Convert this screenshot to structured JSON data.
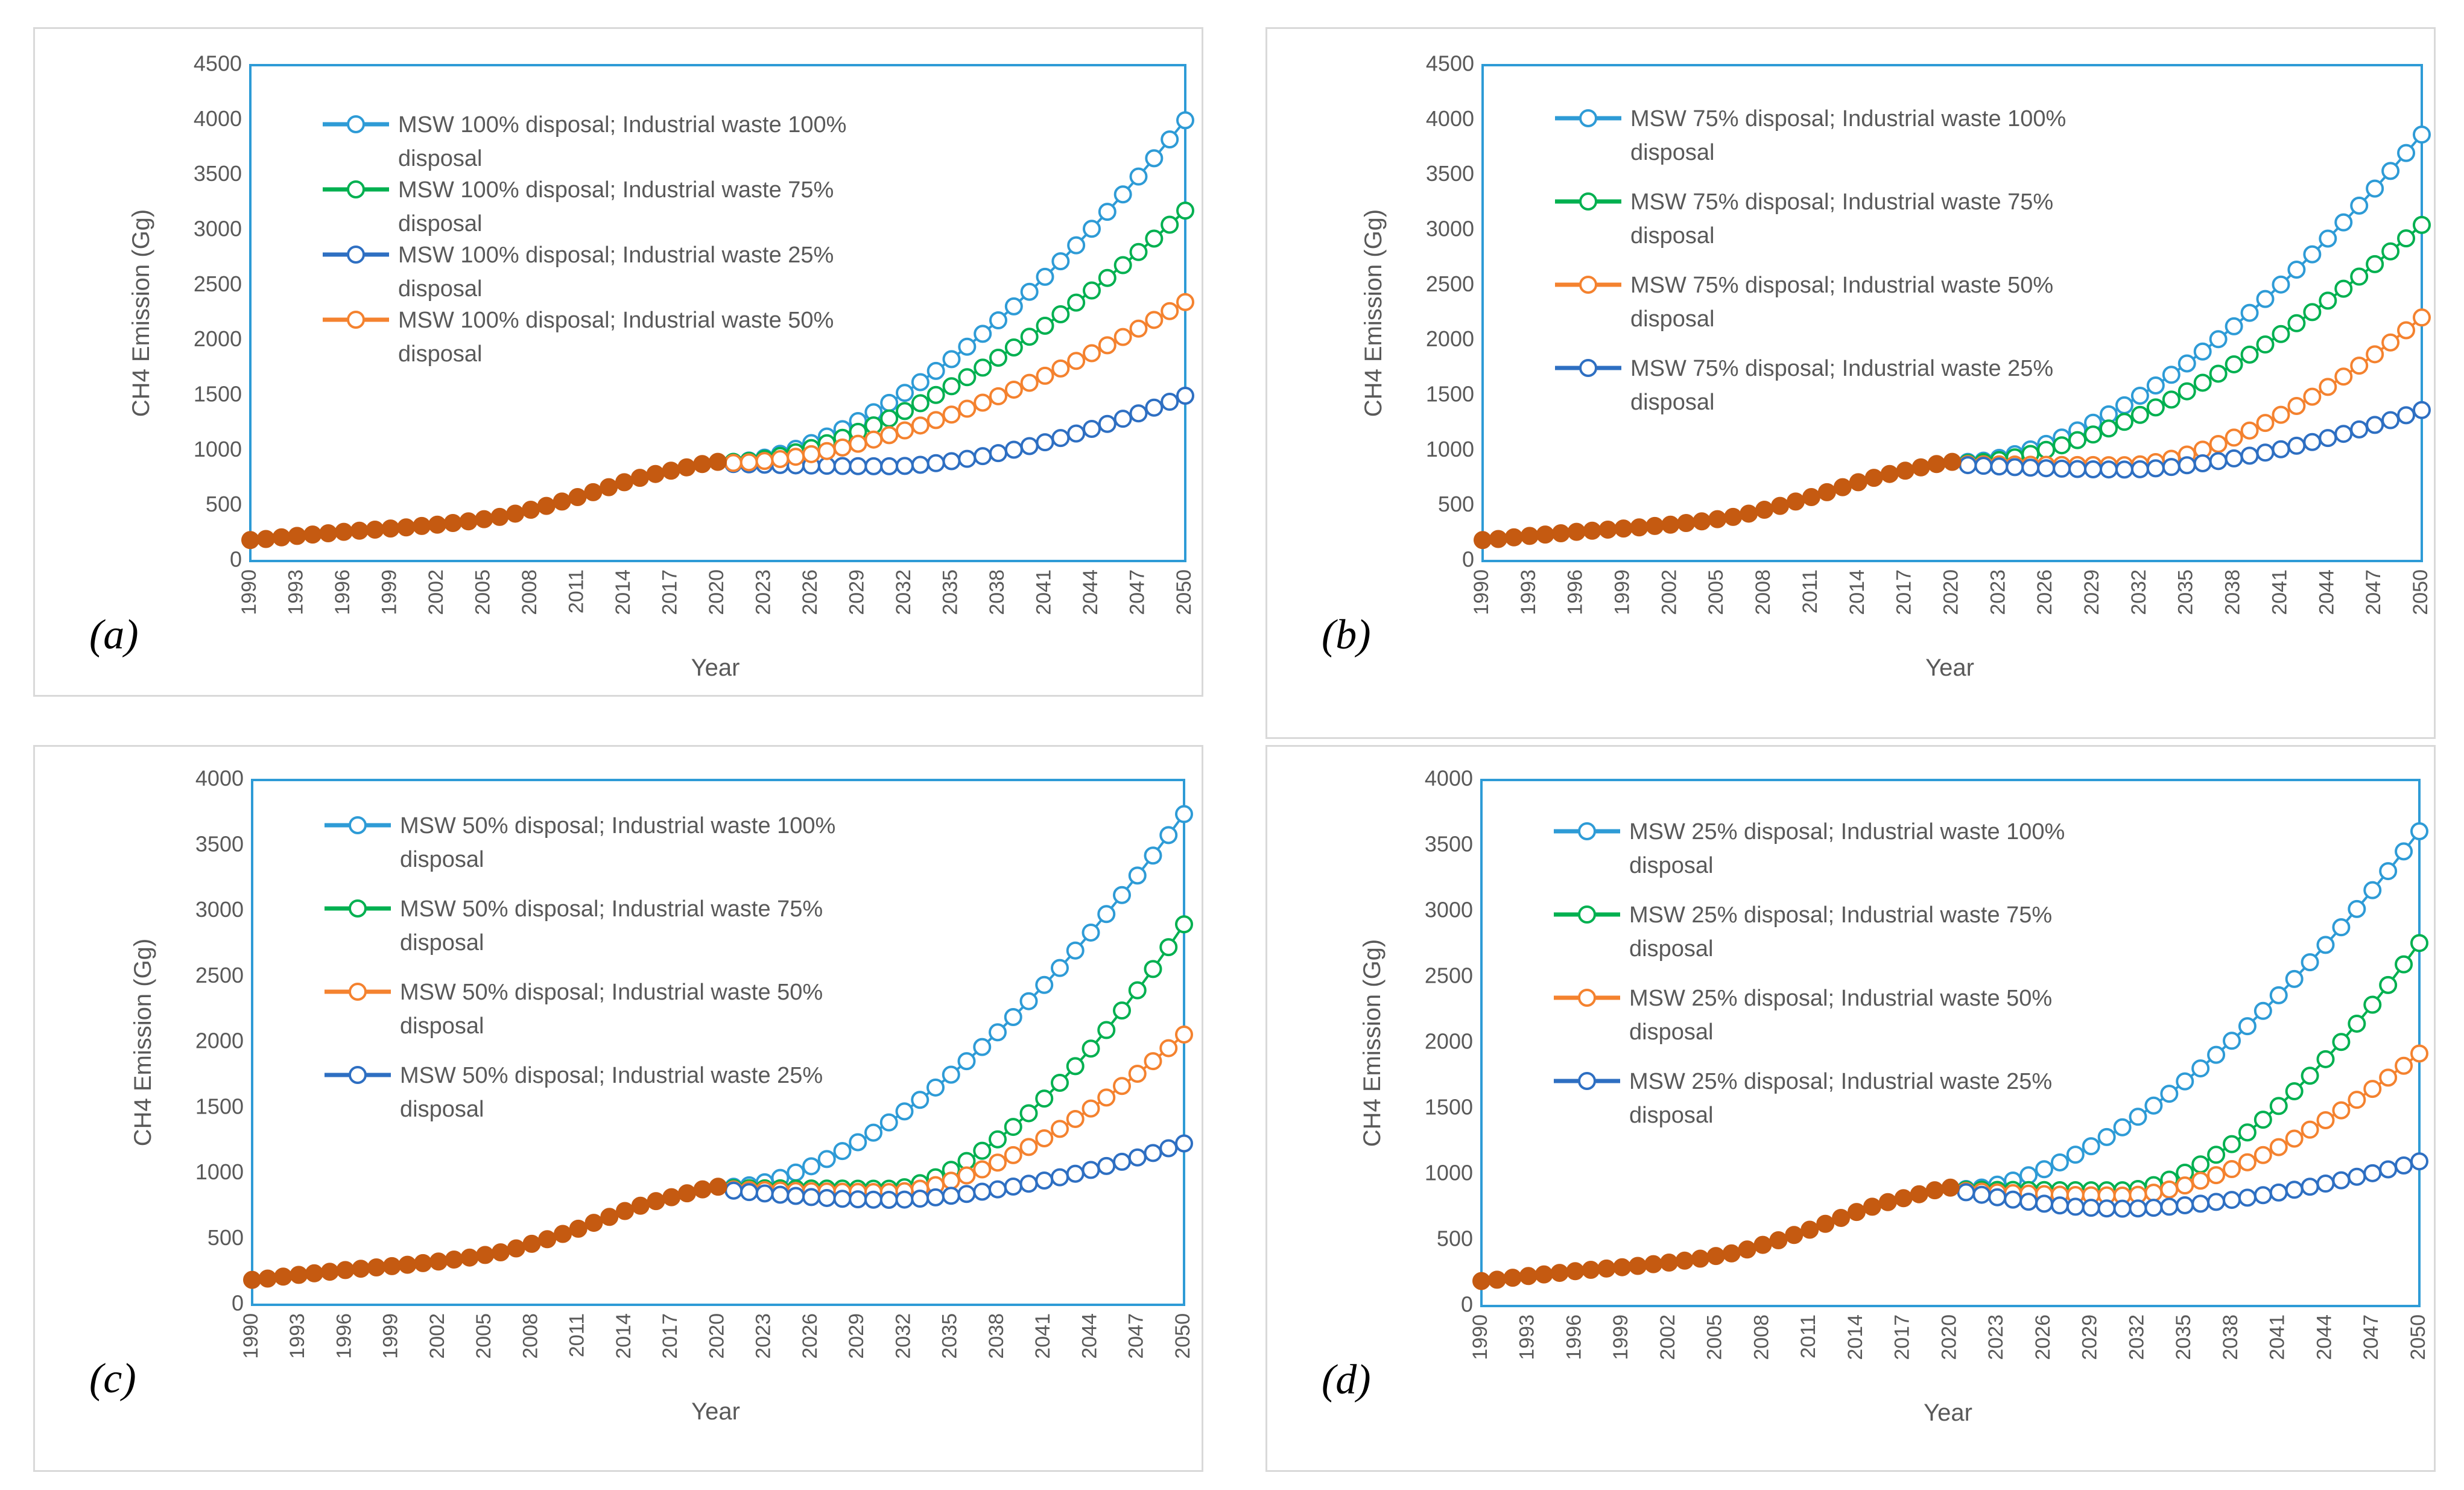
{
  "colors": {
    "historical": "#c55a11",
    "ind100": "#2e9bd6",
    "ind75": "#00b050",
    "ind50": "#f4822f",
    "ind25": "#2e6fc2",
    "plot_border": "#2e9bd6",
    "panel_border": "#d9d9d9",
    "text": "#595959"
  },
  "chart_data": [
    {
      "id": "a",
      "panel_label": "(a)",
      "type": "line",
      "title": "",
      "xlabel": "Year",
      "ylabel": "CH4 Emission (Gg)",
      "ylim": [
        0,
        4500
      ],
      "yticks": [
        0,
        500,
        1000,
        1500,
        2000,
        2500,
        3000,
        3500,
        4000,
        4500
      ],
      "xlim": [
        1990,
        2050
      ],
      "xticks": [
        1990,
        1993,
        1996,
        1999,
        2002,
        2005,
        2008,
        2011,
        2014,
        2017,
        2020,
        2023,
        2026,
        2029,
        2032,
        2035,
        2038,
        2041,
        2044,
        2047,
        2050
      ],
      "legend_position": "top-left",
      "historical": {
        "x": [
          1990,
          1991,
          1992,
          1993,
          1994,
          1995,
          1996,
          1997,
          1998,
          1999,
          2000,
          2001,
          2002,
          2003,
          2004,
          2005,
          2006,
          2007,
          2008,
          2009,
          2010,
          2011,
          2012,
          2013,
          2014,
          2015,
          2016,
          2017,
          2018,
          2019,
          2020
        ],
        "y": [
          190,
          200,
          215,
          228,
          240,
          252,
          265,
          275,
          285,
          295,
          305,
          318,
          330,
          345,
          360,
          380,
          400,
          430,
          465,
          500,
          540,
          580,
          625,
          670,
          715,
          755,
          790,
          820,
          850,
          880,
          900
        ]
      },
      "series": [
        {
          "name": "MSW 100% disposal; Industrial waste 100% disposal",
          "name_lines": [
            "MSW 100% disposal; Industrial waste 100%",
            "disposal"
          ],
          "color_key": "ind100",
          "x_start": 2021,
          "x_end": 2050,
          "y_start": 900,
          "y_end": 4000,
          "min_value": 900
        },
        {
          "name": "MSW 100% disposal; Industrial waste 75% disposal",
          "name_lines": [
            "MSW 100% disposal; Industrial waste 75%",
            "disposal"
          ],
          "color_key": "ind75",
          "x_start": 2021,
          "x_end": 2050,
          "y_start": 900,
          "y_end": 3180,
          "min_value": 900
        },
        {
          "name": "MSW 100% disposal; Industrial waste 25% disposal",
          "name_lines": [
            "MSW 100% disposal; Industrial waste 25%",
            "disposal"
          ],
          "color_key": "ind25",
          "x_start": 2021,
          "x_end": 2050,
          "y_start": 880,
          "y_end": 1500,
          "min_value": 860
        },
        {
          "name": "MSW 100% disposal; Industrial waste 50% disposal",
          "name_lines": [
            "MSW 100% disposal; Industrial waste 50%",
            "disposal"
          ],
          "color_key": "ind50",
          "x_start": 2021,
          "x_end": 2050,
          "y_start": 890,
          "y_end": 2350,
          "min_value": 890
        }
      ]
    },
    {
      "id": "b",
      "panel_label": "(b)",
      "type": "line",
      "title": "",
      "xlabel": "Year",
      "ylabel": "CH4 Emission (Gg)",
      "ylim": [
        0,
        4500
      ],
      "yticks": [
        0,
        500,
        1000,
        1500,
        2000,
        2500,
        3000,
        3500,
        4000,
        4500
      ],
      "xlim": [
        1990,
        2050
      ],
      "xticks": [
        1990,
        1993,
        1996,
        1999,
        2002,
        2005,
        2008,
        2011,
        2014,
        2017,
        2020,
        2023,
        2026,
        2029,
        2032,
        2035,
        2038,
        2041,
        2044,
        2047,
        2050
      ],
      "legend_position": "top-left",
      "historical": {
        "x": [
          1990,
          1991,
          1992,
          1993,
          1994,
          1995,
          1996,
          1997,
          1998,
          1999,
          2000,
          2001,
          2002,
          2003,
          2004,
          2005,
          2006,
          2007,
          2008,
          2009,
          2010,
          2011,
          2012,
          2013,
          2014,
          2015,
          2016,
          2017,
          2018,
          2019,
          2020
        ],
        "y": [
          190,
          200,
          215,
          228,
          240,
          252,
          265,
          275,
          285,
          295,
          305,
          318,
          330,
          345,
          360,
          380,
          400,
          430,
          465,
          500,
          540,
          580,
          625,
          670,
          715,
          755,
          790,
          820,
          850,
          880,
          900
        ]
      },
      "series": [
        {
          "name": "MSW 75% disposal; Industrial waste 100% disposal",
          "name_lines": [
            "MSW 75% disposal; Industrial waste 100%",
            "disposal"
          ],
          "color_key": "ind100",
          "x_start": 2021,
          "x_end": 2050,
          "y_start": 900,
          "y_end": 3870,
          "min_value": 900
        },
        {
          "name": "MSW 75% disposal; Industrial waste 75% disposal",
          "name_lines": [
            "MSW 75% disposal; Industrial waste 75%",
            "disposal"
          ],
          "color_key": "ind75",
          "x_start": 2021,
          "x_end": 2050,
          "y_start": 890,
          "y_end": 3050,
          "min_value": 890
        },
        {
          "name": "MSW 75% disposal; Industrial waste 50% disposal",
          "name_lines": [
            "MSW 75% disposal; Industrial waste 50%",
            "disposal"
          ],
          "color_key": "ind50",
          "x_start": 2021,
          "x_end": 2050,
          "y_start": 880,
          "y_end": 2210,
          "min_value": 870
        },
        {
          "name": "MSW 75% disposal; Industrial waste 25% disposal",
          "name_lines": [
            "MSW 75% disposal; Industrial waste 25%",
            "disposal"
          ],
          "color_key": "ind25",
          "x_start": 2021,
          "x_end": 2050,
          "y_start": 870,
          "y_end": 1370,
          "min_value": 830
        }
      ]
    },
    {
      "id": "c",
      "panel_label": "(c)",
      "type": "line",
      "title": "",
      "xlabel": "Year",
      "ylabel": "CH4 Emission (Gg)",
      "ylim": [
        0,
        4000
      ],
      "yticks": [
        0,
        500,
        1000,
        1500,
        2000,
        2500,
        3000,
        3500,
        4000
      ],
      "xlim": [
        1990,
        2050
      ],
      "xticks": [
        1990,
        1993,
        1996,
        1999,
        2002,
        2005,
        2008,
        2011,
        2014,
        2017,
        2020,
        2023,
        2026,
        2029,
        2032,
        2035,
        2038,
        2041,
        2044,
        2047,
        2050
      ],
      "legend_position": "top-left",
      "historical": {
        "x": [
          1990,
          1991,
          1992,
          1993,
          1994,
          1995,
          1996,
          1997,
          1998,
          1999,
          2000,
          2001,
          2002,
          2003,
          2004,
          2005,
          2006,
          2007,
          2008,
          2009,
          2010,
          2011,
          2012,
          2013,
          2014,
          2015,
          2016,
          2017,
          2018,
          2019,
          2020
        ],
        "y": [
          190,
          200,
          215,
          228,
          240,
          252,
          265,
          275,
          285,
          295,
          305,
          318,
          330,
          345,
          360,
          380,
          400,
          430,
          465,
          500,
          540,
          580,
          625,
          670,
          715,
          755,
          790,
          820,
          850,
          880,
          900
        ]
      },
      "series": [
        {
          "name": "MSW 50% disposal; Industrial waste 100% disposal",
          "name_lines": [
            "MSW 50% disposal; Industrial waste 100%",
            "disposal"
          ],
          "color_key": "ind100",
          "x_start": 2021,
          "x_end": 2050,
          "y_start": 900,
          "y_end": 3740,
          "min_value": 900
        },
        {
          "name": "MSW 50% disposal; Industrial waste 75% disposal",
          "name_lines": [
            "MSW 50% disposal; Industrial waste 75%",
            "disposal"
          ],
          "color_key": "ind75",
          "x_start": 2021,
          "x_end": 2050,
          "y_start": 890,
          "y_end": 2900,
          "min_value": 885
        },
        {
          "name": "MSW 50% disposal; Industrial waste 50% disposal",
          "name_lines": [
            "MSW 50% disposal; Industrial waste 50%",
            "disposal"
          ],
          "color_key": "ind50",
          "x_start": 2021,
          "x_end": 2050,
          "y_start": 880,
          "y_end": 2060,
          "min_value": 860
        },
        {
          "name": "MSW 50% disposal; Industrial waste 25% disposal",
          "name_lines": [
            "MSW 50% disposal; Industrial waste 25%",
            "disposal"
          ],
          "color_key": "ind25",
          "x_start": 2021,
          "x_end": 2050,
          "y_start": 870,
          "y_end": 1230,
          "min_value": 800
        }
      ]
    },
    {
      "id": "d",
      "panel_label": "(d)",
      "type": "line",
      "title": "",
      "xlabel": "Year",
      "ylabel": "CH4 Emission (Gg)",
      "ylim": [
        0,
        4000
      ],
      "yticks": [
        0,
        500,
        1000,
        1500,
        2000,
        2500,
        3000,
        3500,
        4000
      ],
      "xlim": [
        1990,
        2050
      ],
      "xticks": [
        1990,
        1993,
        1996,
        1999,
        2002,
        2005,
        2008,
        2011,
        2014,
        2017,
        2020,
        2023,
        2026,
        2029,
        2032,
        2035,
        2038,
        2041,
        2044,
        2047,
        2050
      ],
      "legend_position": "top-left",
      "historical": {
        "x": [
          1990,
          1991,
          1992,
          1993,
          1994,
          1995,
          1996,
          1997,
          1998,
          1999,
          2000,
          2001,
          2002,
          2003,
          2004,
          2005,
          2006,
          2007,
          2008,
          2009,
          2010,
          2011,
          2012,
          2013,
          2014,
          2015,
          2016,
          2017,
          2018,
          2019,
          2020
        ],
        "y": [
          190,
          200,
          215,
          228,
          240,
          252,
          265,
          275,
          285,
          295,
          305,
          318,
          330,
          345,
          360,
          380,
          400,
          430,
          465,
          500,
          540,
          580,
          625,
          670,
          715,
          755,
          790,
          820,
          850,
          880,
          900
        ]
      },
      "series": [
        {
          "name": "MSW 25% disposal; Industrial waste 100% disposal",
          "name_lines": [
            "MSW 25% disposal; Industrial waste 100%",
            "disposal"
          ],
          "color_key": "ind100",
          "x_start": 2021,
          "x_end": 2050,
          "y_start": 890,
          "y_end": 3610,
          "min_value": 890
        },
        {
          "name": "MSW 25% disposal; Industrial waste 75% disposal",
          "name_lines": [
            "MSW 25% disposal; Industrial waste 75%",
            "disposal"
          ],
          "color_key": "ind75",
          "x_start": 2021,
          "x_end": 2050,
          "y_start": 885,
          "y_end": 2760,
          "min_value": 880
        },
        {
          "name": "MSW 25% disposal; Industrial waste 50% disposal",
          "name_lines": [
            "MSW 25% disposal; Industrial waste 50%",
            "disposal"
          ],
          "color_key": "ind50",
          "x_start": 2021,
          "x_end": 2050,
          "y_start": 875,
          "y_end": 1920,
          "min_value": 840
        },
        {
          "name": "MSW 25% disposal; Industrial waste 25% disposal",
          "name_lines": [
            "MSW 25% disposal; Industrial waste 25%",
            "disposal"
          ],
          "color_key": "ind25",
          "x_start": 2021,
          "x_end": 2050,
          "y_start": 865,
          "y_end": 1100,
          "min_value": 740
        }
      ]
    }
  ]
}
